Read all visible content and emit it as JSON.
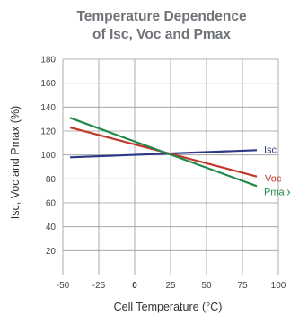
{
  "chart_data": {
    "type": "line",
    "title_lines": [
      "Temperature Dependence",
      "of Isc, Voc and Pmax"
    ],
    "xlabel": "Cell Temperature (°C)",
    "ylabel": "Isc, Voc and Pmax (%)",
    "xlim": [
      -50,
      100
    ],
    "ylim": [
      0,
      180
    ],
    "x_ticks": [
      -50,
      -25,
      0,
      25,
      50,
      75,
      100
    ],
    "x_tick_labels": [
      "-50",
      "-25",
      "0",
      "25",
      "50",
      "75",
      "100"
    ],
    "y_ticks": [
      20,
      40,
      60,
      80,
      100,
      120,
      140,
      160,
      180
    ],
    "y_tick_labels": [
      "20",
      "40",
      "60",
      "80",
      "100",
      "120",
      "140",
      "160",
      "180"
    ],
    "grid": true,
    "series": [
      {
        "name": "Isc",
        "color": "#2e3a87",
        "x": [
          -45,
          85
        ],
        "y": [
          98,
          104
        ]
      },
      {
        "name": "Voc",
        "color": "#c0392b",
        "x": [
          -45,
          85
        ],
        "y": [
          123,
          82
        ]
      },
      {
        "name": "Pma x",
        "color": "#1f8a4c",
        "x": [
          -45,
          85
        ],
        "y": [
          131,
          74
        ]
      }
    ]
  }
}
